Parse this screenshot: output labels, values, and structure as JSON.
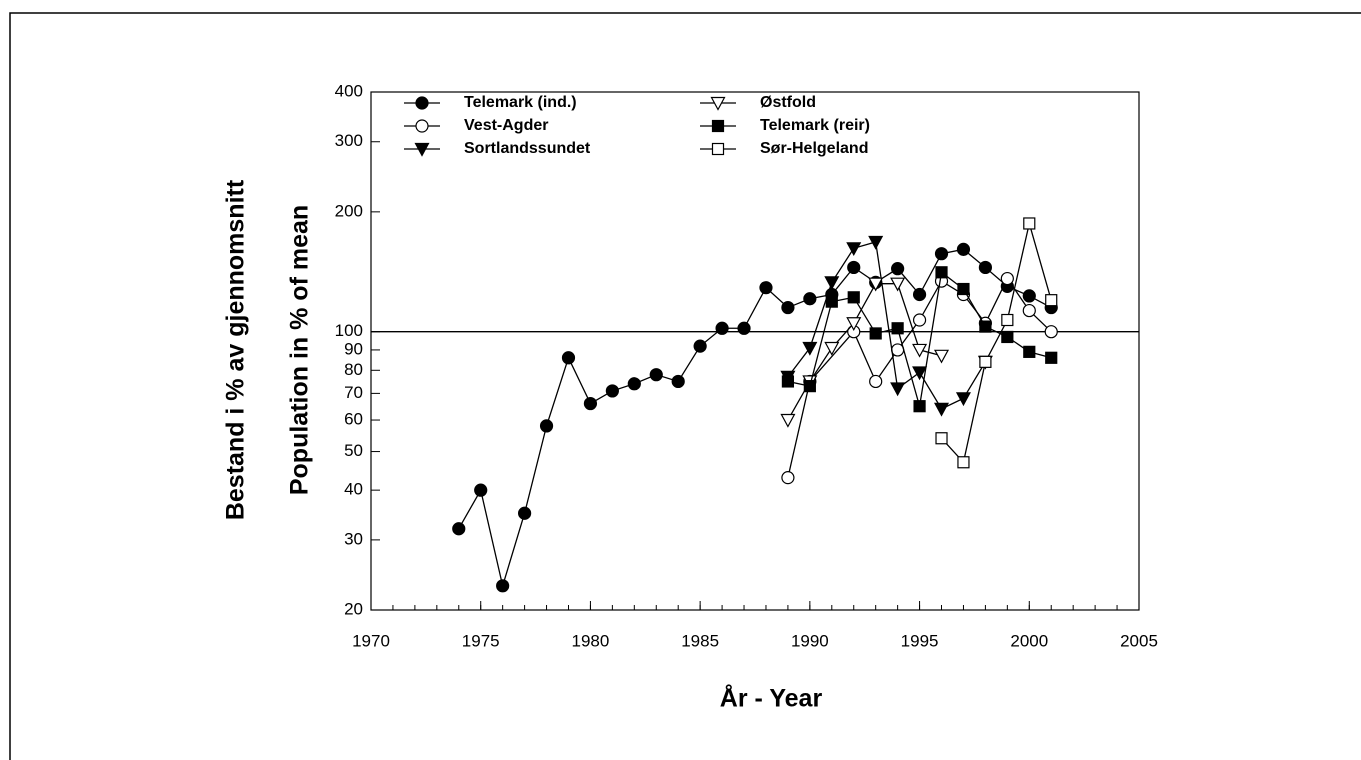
{
  "chart_data": {
    "type": "line",
    "xlabel": "År  -  Year",
    "ylabel": [
      "Bestand i % av gjennomsnitt",
      "Population in % of mean"
    ],
    "xlim": [
      1970,
      2005
    ],
    "xticks": [
      1970,
      1975,
      1980,
      1985,
      1990,
      1995,
      2000,
      2005
    ],
    "ylim": [
      20,
      400
    ],
    "yticks": [
      20,
      30,
      40,
      50,
      60,
      70,
      80,
      90,
      100,
      200,
      300,
      400
    ],
    "yscale": "log",
    "reference_line": 100,
    "legend": "upper left",
    "series": [
      {
        "name": "Telemark (ind.)",
        "marker": "circle",
        "color": "#000000",
        "fill": "#000000",
        "x": [
          1974,
          1975,
          1976,
          1977,
          1978,
          1979,
          1980,
          1981,
          1982,
          1983,
          1984,
          1985,
          1986,
          1987,
          1988,
          1989,
          1990,
          1991,
          1992,
          1993,
          1994,
          1995,
          1996,
          1997,
          1998,
          1999,
          2000,
          2001
        ],
        "values": [
          32,
          40,
          23,
          35,
          58,
          86,
          66,
          71,
          74,
          78,
          75,
          92,
          102,
          102,
          129,
          115,
          121,
          124,
          145,
          133,
          144,
          124,
          157,
          161,
          145,
          130,
          123,
          115
        ]
      },
      {
        "name": "Vest-Agder",
        "marker": "circle",
        "color": "#000000",
        "fill": "#ffffff",
        "x": [
          1989,
          1990,
          1992,
          1993,
          1994,
          1995,
          1996,
          1997,
          1998,
          1999,
          2000,
          2001
        ],
        "values": [
          43,
          75,
          100,
          75,
          90,
          107,
          134,
          124,
          105,
          136,
          113,
          100
        ]
      },
      {
        "name": "Sortlandssundet",
        "marker": "triangle-down",
        "color": "#000000",
        "fill": "#000000",
        "x": [
          1989,
          1990,
          1991,
          1992,
          1993,
          1994,
          1995,
          1996,
          1997,
          1998
        ],
        "values": [
          77,
          91,
          133,
          162,
          168,
          72,
          79,
          64,
          68,
          84
        ]
      },
      {
        "name": "Østfold",
        "marker": "triangle-down",
        "color": "#000000",
        "fill": "#ffffff",
        "x": [
          1989,
          1990,
          1991,
          1992,
          1993,
          1994,
          1995,
          1996
        ],
        "values": [
          60,
          75,
          91,
          105,
          132,
          132,
          90,
          87
        ]
      },
      {
        "name": "Telemark (reir)",
        "marker": "square",
        "color": "#000000",
        "fill": "#000000",
        "x": [
          1989,
          1990,
          1991,
          1992,
          1993,
          1994,
          1995,
          1996,
          1997,
          1998,
          1999,
          2000,
          2001
        ],
        "values": [
          75,
          73,
          119,
          122,
          99,
          102,
          65,
          141,
          128,
          103,
          97,
          89,
          86
        ]
      },
      {
        "name": "Sør-Helgeland",
        "marker": "square",
        "color": "#000000",
        "fill": "#ffffff",
        "x": [
          1996,
          1997,
          1998,
          1999,
          2000,
          2001
        ],
        "values": [
          54,
          47,
          84,
          107,
          187,
          120
        ]
      }
    ]
  }
}
